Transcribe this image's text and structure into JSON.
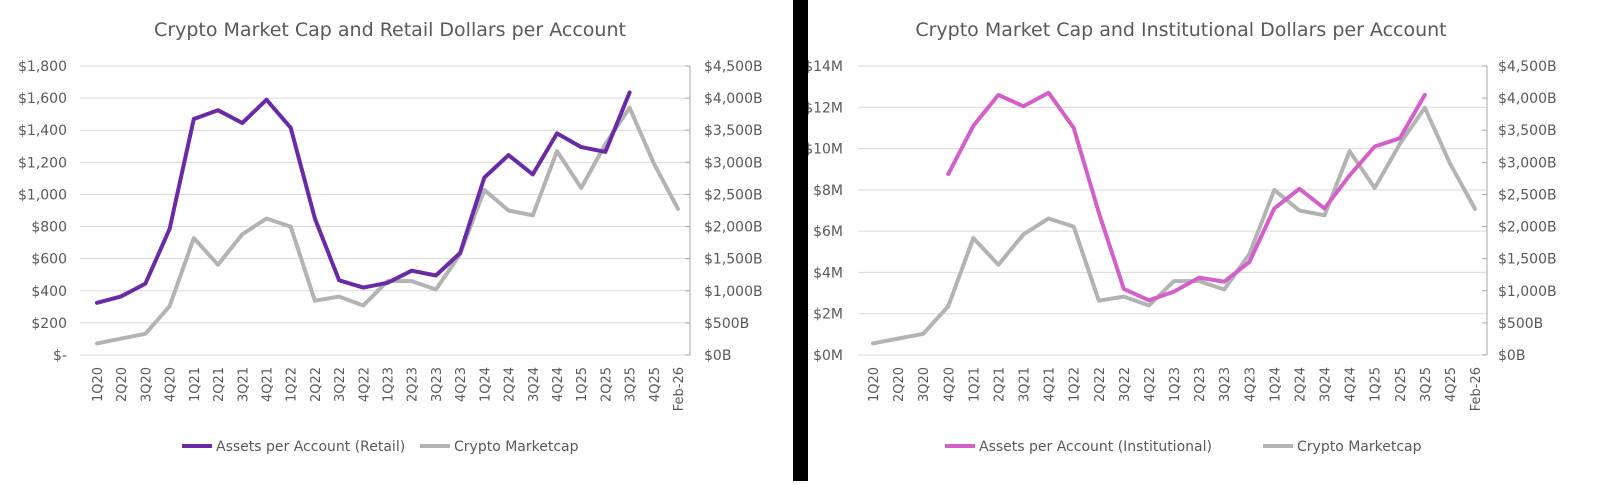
{
  "chart_data": [
    {
      "type": "line",
      "title": "Crypto Market Cap and Retail Dollars per Account",
      "categories": [
        "1Q20",
        "2Q20",
        "3Q20",
        "4Q20",
        "1Q21",
        "2Q21",
        "3Q21",
        "4Q21",
        "1Q22",
        "2Q22",
        "3Q22",
        "4Q22",
        "1Q23",
        "2Q23",
        "3Q23",
        "4Q23",
        "1Q24",
        "2Q24",
        "3Q24",
        "4Q24",
        "1Q25",
        "2Q25",
        "3Q25",
        "4Q25",
        "Feb-26"
      ],
      "y_left": {
        "ylim": [
          0,
          1800
        ],
        "ticks": [
          0,
          200,
          400,
          600,
          800,
          1000,
          1200,
          1400,
          1600,
          1800
        ],
        "tick_labels": [
          "$-",
          "$200",
          "$400",
          "$600",
          "$800",
          "$1,000",
          "$1,200",
          "$1,400",
          "$1,600",
          "$1,800"
        ]
      },
      "y_right": {
        "ylim": [
          0,
          4500
        ],
        "ticks": [
          0,
          500,
          1000,
          1500,
          2000,
          2500,
          3000,
          3500,
          4000,
          4500
        ],
        "tick_labels": [
          "$0B",
          "$500B",
          "$1,000B",
          "$1,500B",
          "$2,000B",
          "$2,500B",
          "$3,000B",
          "$3,500B",
          "$4,000B",
          "$4,500B"
        ]
      },
      "grid": true,
      "legend": "bottom",
      "series": [
        {
          "name": "Assets per Account (Retail)",
          "axis": "left",
          "color": "#6a2aa6",
          "values": [
            325,
            365,
            445,
            785,
            1470,
            1525,
            1445,
            1590,
            1415,
            850,
            465,
            420,
            450,
            525,
            495,
            635,
            1105,
            1245,
            1125,
            1380,
            1295,
            1265,
            1635,
            null,
            null
          ]
        },
        {
          "name": "Crypto Marketcap",
          "axis": "right",
          "color": "#b3b3b3",
          "values": [
            180,
            255,
            330,
            760,
            1820,
            1405,
            1880,
            2125,
            2000,
            845,
            910,
            770,
            1150,
            1150,
            1020,
            1570,
            2570,
            2250,
            2175,
            3175,
            2600,
            3285,
            3850,
            2985,
            2275
          ]
        }
      ]
    },
    {
      "type": "line",
      "title": "Crypto Market Cap and Institutional Dollars per Account",
      "categories": [
        "1Q20",
        "2Q20",
        "3Q20",
        "4Q20",
        "1Q21",
        "2Q21",
        "3Q21",
        "4Q21",
        "1Q22",
        "2Q22",
        "3Q22",
        "4Q22",
        "1Q23",
        "2Q23",
        "3Q23",
        "4Q23",
        "1Q24",
        "2Q24",
        "3Q24",
        "4Q24",
        "1Q25",
        "2Q25",
        "3Q25",
        "4Q25",
        "Feb-26"
      ],
      "y_left": {
        "ylim": [
          0,
          14
        ],
        "ticks": [
          0,
          2,
          4,
          6,
          8,
          10,
          12,
          14
        ],
        "tick_labels": [
          "$0M",
          "$2M",
          "$4M",
          "$6M",
          "$8M",
          "$10M",
          "$12M",
          "$14M"
        ]
      },
      "y_right": {
        "ylim": [
          0,
          4500
        ],
        "ticks": [
          0,
          500,
          1000,
          1500,
          2000,
          2500,
          3000,
          3500,
          4000,
          4500
        ],
        "tick_labels": [
          "$0B",
          "$500B",
          "$1,000B",
          "$1,500B",
          "$2,000B",
          "$2,500B",
          "$3,000B",
          "$3,500B",
          "$4,000B",
          "$4,500B"
        ]
      },
      "grid": true,
      "legend": "bottom",
      "series": [
        {
          "name": "Assets per Account (Institutional)",
          "axis": "left",
          "color": "#d35fcb",
          "values": [
            null,
            null,
            null,
            8.77,
            11.1,
            12.6,
            12.05,
            12.7,
            11.0,
            6.9,
            3.2,
            2.65,
            3.07,
            3.75,
            3.55,
            4.5,
            7.1,
            8.05,
            7.1,
            8.7,
            10.1,
            10.5,
            12.6,
            null,
            null
          ]
        },
        {
          "name": "Crypto Marketcap",
          "axis": "right",
          "color": "#b3b3b3",
          "values": [
            180,
            255,
            330,
            760,
            1820,
            1405,
            1880,
            2125,
            2000,
            845,
            910,
            770,
            1150,
            1150,
            1020,
            1570,
            2570,
            2250,
            2175,
            3175,
            2600,
            3285,
            3850,
            2985,
            2275
          ]
        }
      ]
    }
  ]
}
